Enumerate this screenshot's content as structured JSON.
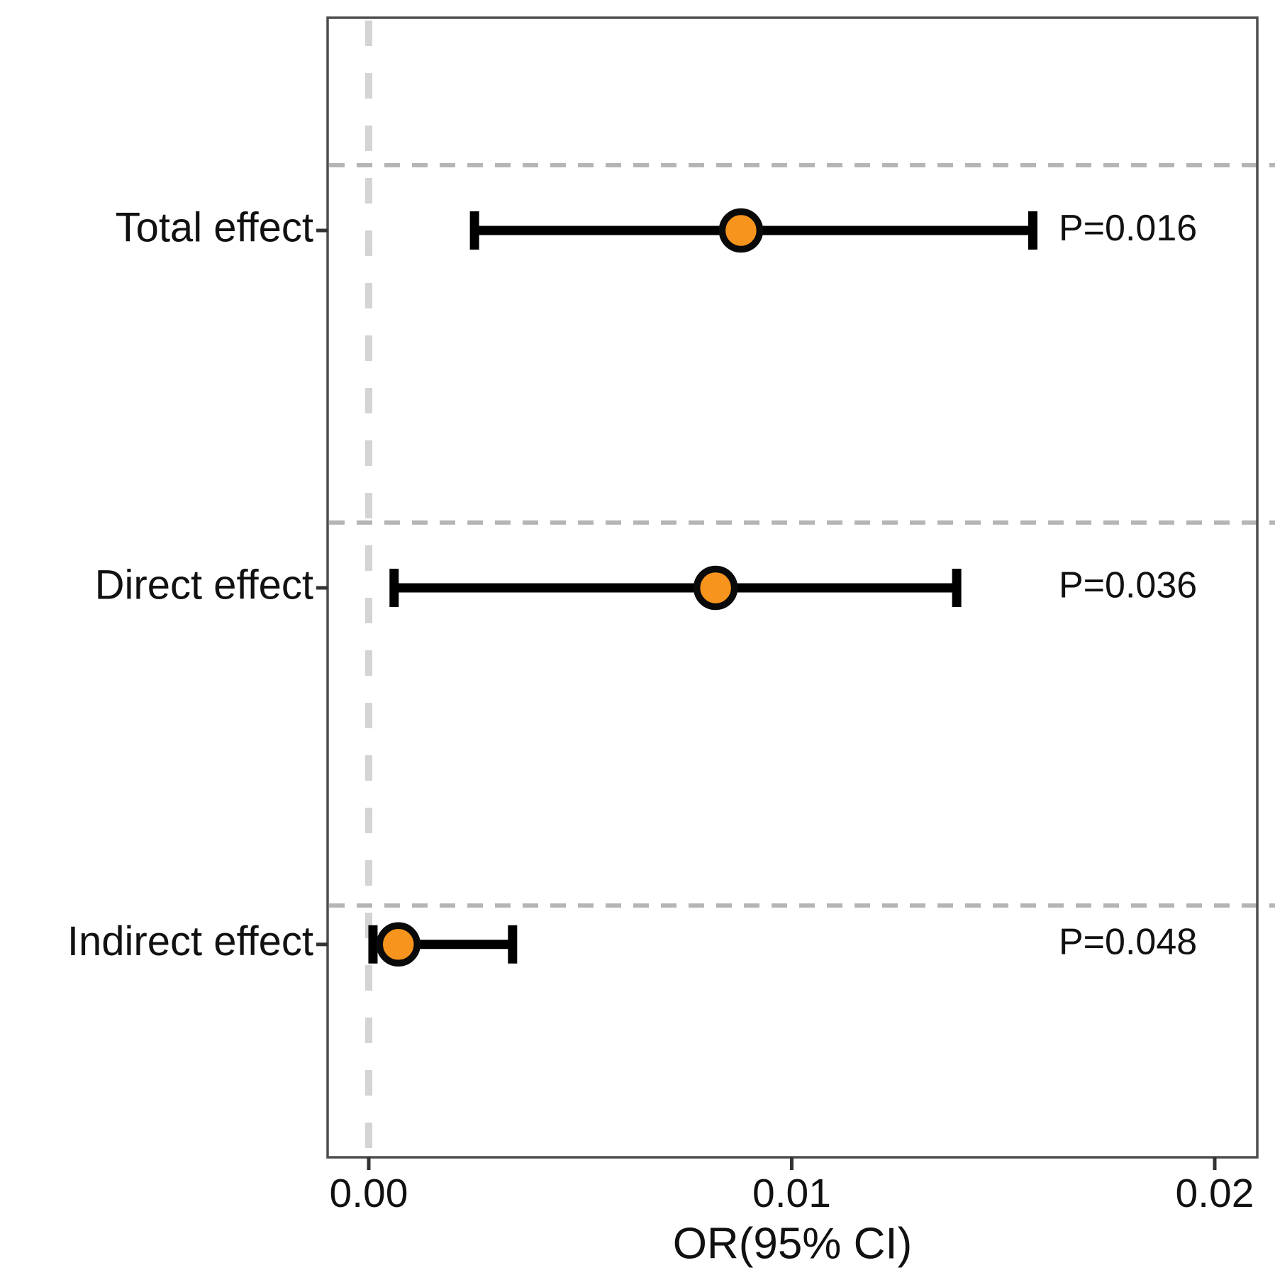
{
  "figure": {
    "background": "#FFFFFF"
  },
  "chart_data": {
    "type": "forest",
    "title": "",
    "xlabel": "OR(95% CI)",
    "ylabel": "",
    "xlim": [
      -0.001,
      0.021
    ],
    "grid": "dashed horizontal separator above each row; dashed vertical reference line at 0",
    "legend": null,
    "x_ticks": [
      {
        "value": 0.0,
        "label": "0.00"
      },
      {
        "value": 0.01,
        "label": "0.01"
      },
      {
        "value": 0.02,
        "label": "0.02"
      }
    ],
    "reference_line": {
      "value": 0.0,
      "style": "dashed"
    },
    "rows": [
      {
        "label": "Total effect",
        "or": 0.0088,
        "ci_low": 0.0025,
        "ci_high": 0.0157,
        "p_label": "P=0.016"
      },
      {
        "label": "Direct effect",
        "or": 0.0082,
        "ci_low": 0.0006,
        "ci_high": 0.0139,
        "p_label": "P=0.036"
      },
      {
        "label": "Indirect effect",
        "or": 0.0007,
        "ci_low": 0.0001,
        "ci_high": 0.0034,
        "p_label": "P=0.048"
      }
    ],
    "colors": {
      "point_fill": "#F7941D",
      "point_stroke": "#0A0A0A",
      "error_bar": "#000000",
      "separator_line": "#B5B5B5",
      "reference_line_color": "#D4D4D4",
      "panel_border": "#4D4D4D",
      "axis_tick": "#333333",
      "text": "#111111"
    }
  }
}
